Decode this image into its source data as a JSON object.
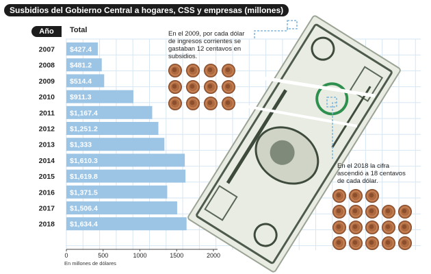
{
  "header": {
    "title": "Susbidios del Gobierno Central a hogares, CSS y empresas (millones)",
    "col_year": "Año",
    "col_total": "Total"
  },
  "notes": {
    "note_2009": "En el 2009, por cada dólar de ingresos corrientes se gastaban 12 centavos en subsidios.",
    "note_2018": "En el 2018 la cifra ascendió a 18 centavos de cada dólar."
  },
  "coins": {
    "count_2009": 12,
    "count_2018": 18,
    "color": "#b06a3f"
  },
  "chart_data": {
    "type": "bar",
    "orientation": "horizontal",
    "categories": [
      "2007",
      "2008",
      "2009",
      "2010",
      "2011",
      "2012",
      "2013",
      "2014",
      "2015",
      "2016",
      "2017",
      "2018"
    ],
    "values": [
      427.4,
      481.2,
      514.4,
      911.3,
      1167.4,
      1251.2,
      1333,
      1610.3,
      1619.8,
      1371.5,
      1506.4,
      1634.4
    ],
    "value_labels": [
      "$427.4",
      "$481.2",
      "$514.4",
      "$911.3",
      "$1,167.4",
      "$1,251.2",
      "$1,333",
      "$1,610.3",
      "$1,619.8",
      "$1,371.5",
      "$1,506.4",
      "$1,634.4"
    ],
    "xticks": [
      "0",
      "500",
      "1000",
      "1500",
      "2000"
    ],
    "xlim": [
      0,
      2000
    ],
    "xlabel": "En millones de dólares",
    "bar_color": "#9cc4e4",
    "grid": true
  }
}
